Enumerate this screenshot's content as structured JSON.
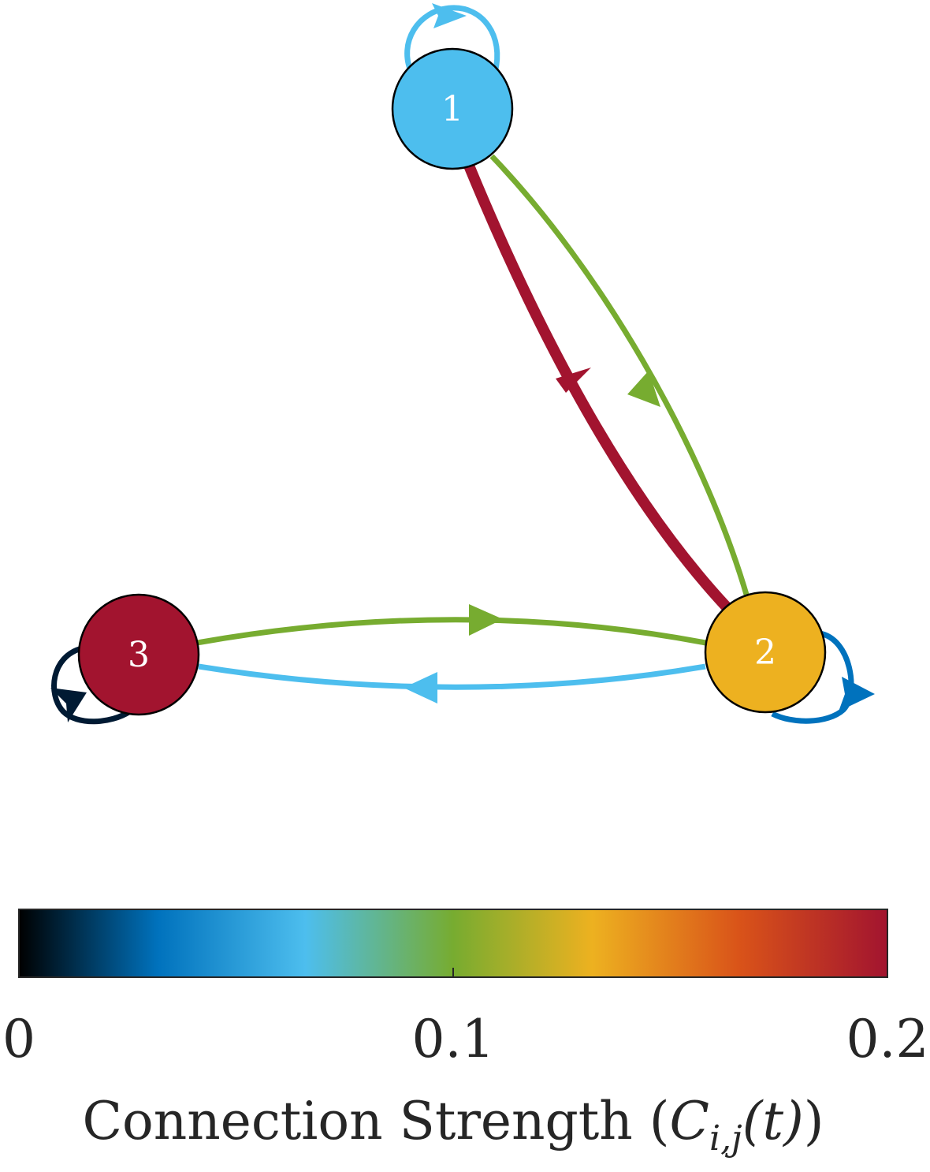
{
  "colors": {
    "node_1": "#4dbeee",
    "node_2": "#edb120",
    "node_3": "#a2142f",
    "edge_1_2": "#77ac30",
    "edge_2_1": "#a2142f",
    "edge_3_2": "#77ac30",
    "edge_2_3": "#4dbeee",
    "loop_1": "#4dbeee",
    "loop_2": "#0072bd",
    "loop_3": "#001a33"
  },
  "nodes": [
    {
      "id": "1",
      "label": "1"
    },
    {
      "id": "2",
      "label": "2"
    },
    {
      "id": "3",
      "label": "3"
    }
  ],
  "edges": [
    {
      "from": "1",
      "to": "1",
      "strength": 0.072
    },
    {
      "from": "1",
      "to": "2",
      "strength": 0.1
    },
    {
      "from": "2",
      "to": "1",
      "strength": 0.2
    },
    {
      "from": "2",
      "to": "2",
      "strength": 0.035
    },
    {
      "from": "2",
      "to": "3",
      "strength": 0.072
    },
    {
      "from": "3",
      "to": "2",
      "strength": 0.1
    },
    {
      "from": "3",
      "to": "3",
      "strength": 0.01
    }
  ],
  "colorbar": {
    "min": 0,
    "max": 0.2,
    "ticks": [
      "0",
      "0.1",
      "0.2"
    ],
    "label_text": "Connection Strength (",
    "label_math": "C",
    "label_sub": "i,j",
    "label_math_tail": "(t)",
    "label_close": ")",
    "stops": [
      {
        "offset": 0.0,
        "color": "#000000"
      },
      {
        "offset": 0.16,
        "color": "#0072bd"
      },
      {
        "offset": 0.33,
        "color": "#4dbeee"
      },
      {
        "offset": 0.5,
        "color": "#77ac30"
      },
      {
        "offset": 0.66,
        "color": "#edb120"
      },
      {
        "offset": 0.83,
        "color": "#d95319"
      },
      {
        "offset": 1.0,
        "color": "#a2142f"
      }
    ]
  }
}
